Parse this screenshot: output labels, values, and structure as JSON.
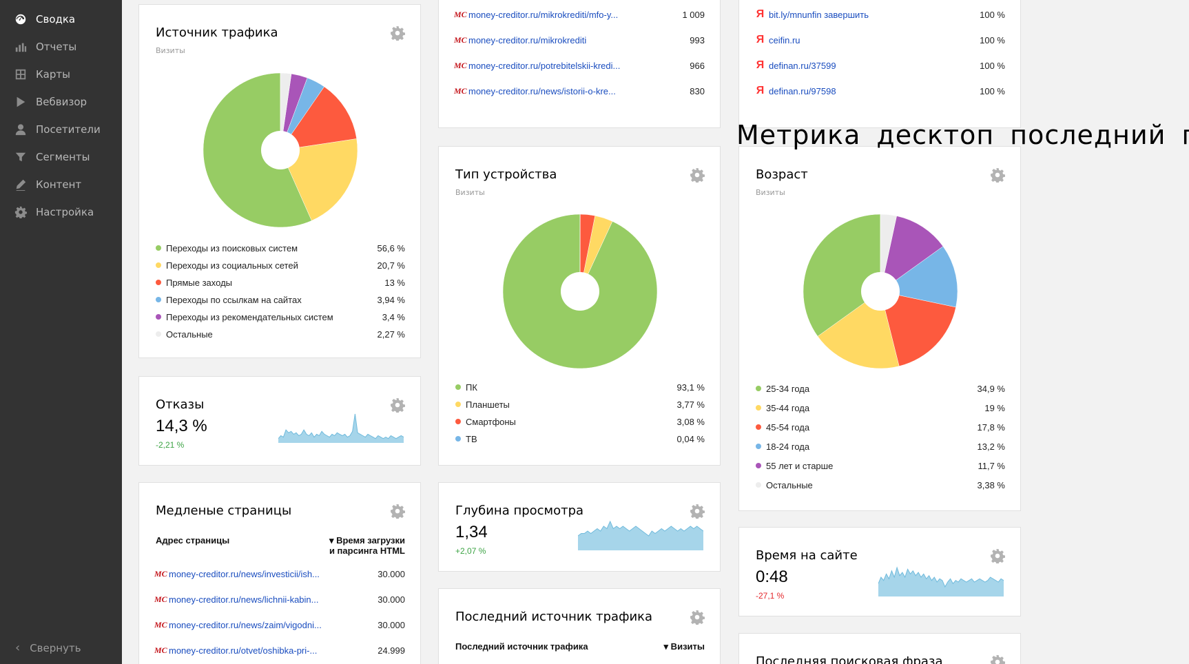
{
  "sidebar": {
    "items": [
      {
        "label": "Сводка",
        "icon": "dashboard-icon",
        "active": true
      },
      {
        "label": "Отчеты",
        "icon": "bar-chart-icon",
        "active": false
      },
      {
        "label": "Карты",
        "icon": "map-icon",
        "active": false
      },
      {
        "label": "Вебвизор",
        "icon": "play-icon",
        "active": false
      },
      {
        "label": "Посетители",
        "icon": "user-icon",
        "active": false
      },
      {
        "label": "Сегменты",
        "icon": "filter-icon",
        "active": false
      },
      {
        "label": "Контент",
        "icon": "pencil-icon",
        "active": false
      },
      {
        "label": "Настройка",
        "icon": "gear-icon",
        "active": false
      }
    ],
    "collapse_label": "Свернуть"
  },
  "overlay_caption": "Метрика десктоп последний год",
  "widgets": {
    "traffic_source": {
      "title": "Источник трафика",
      "subtitle": "Визиты",
      "legend": [
        {
          "label": "Переходы из поисковых систем",
          "value": "56,6 %",
          "color": "#97cc64"
        },
        {
          "label": "Переходы из социальных сетей",
          "value": "20,7 %",
          "color": "#ffd963"
        },
        {
          "label": "Прямые заходы",
          "value": "13 %",
          "color": "#fd5a3e"
        },
        {
          "label": "Переходы по ссылкам на сайтах",
          "value": "3,94 %",
          "color": "#77b6e7"
        },
        {
          "label": "Переходы из рекомендательных систем",
          "value": "3,4 %",
          "color": "#a955b8"
        },
        {
          "label": "Остальные",
          "value": "2,27 %",
          "color": "#ededed"
        }
      ]
    },
    "bounces": {
      "title": "Отказы",
      "value": "14,3 %",
      "delta": "-2,21 %",
      "sparkline": [
        3,
        5,
        4,
        9,
        7,
        8,
        6,
        7,
        5,
        6,
        9,
        6,
        5,
        7,
        4,
        6,
        5,
        8,
        6,
        5,
        4,
        6,
        5,
        7,
        6,
        5,
        6,
        4,
        5,
        8,
        20,
        7,
        6,
        5,
        4,
        6,
        5,
        4,
        3,
        5,
        4,
        3,
        4,
        3,
        5,
        4,
        3,
        4,
        5,
        4
      ]
    },
    "slow_pages": {
      "title": "Медленые страницы",
      "col_address": "Адрес страницы",
      "col_time_line1": "▾ Время загрузки",
      "col_time_line2": "и парсинга HTML",
      "rows": [
        {
          "url": "money-creditor.ru/news/investicii/ish...",
          "value": "30.000"
        },
        {
          "url": "money-creditor.ru/news/lichnii-kabin...",
          "value": "30.000"
        },
        {
          "url": "money-creditor.ru/news/zaim/vigodni...",
          "value": "30.000"
        },
        {
          "url": "money-creditor.ru/otvet/oshibka-pri-...",
          "value": "24.999"
        }
      ]
    },
    "pages_top": {
      "rows": [
        {
          "url": "money-creditor.ru/mikrokrediti/mfo-y...",
          "value": "1 009"
        },
        {
          "url": "money-creditor.ru/mikrokrediti",
          "value": "993"
        },
        {
          "url": "money-creditor.ru/potrebitelskii-kredi...",
          "value": "966"
        },
        {
          "url": "money-creditor.ru/news/istorii-o-kre...",
          "value": "830"
        }
      ]
    },
    "device_type": {
      "title": "Тип устройства",
      "subtitle": "Визиты",
      "legend": [
        {
          "label": "ПК",
          "value": "93,1 %",
          "color": "#97cc64"
        },
        {
          "label": "Планшеты",
          "value": "3,77 %",
          "color": "#ffd963"
        },
        {
          "label": "Смартфоны",
          "value": "3,08 %",
          "color": "#fd5a3e"
        },
        {
          "label": "ТВ",
          "value": "0,04 %",
          "color": "#77b6e7"
        }
      ]
    },
    "depth": {
      "title": "Глубина просмотра",
      "value": "1,34",
      "delta": "+2,07 %",
      "sparkline": [
        6,
        7,
        7,
        8,
        7,
        8,
        9,
        8,
        10,
        9,
        12,
        9,
        10,
        9,
        10,
        9,
        8,
        9,
        10,
        9,
        8,
        7,
        6,
        8,
        7,
        8,
        9,
        8,
        9,
        10,
        9,
        8,
        9,
        8,
        9,
        10,
        9,
        10,
        9,
        8
      ]
    },
    "last_source": {
      "title": "Последний источник трафика",
      "col_source": "Последний источник трафика",
      "col_visits": "▾ Визиты"
    },
    "referrals": {
      "rows": [
        {
          "url": "bit.ly/mnunfin завершить",
          "value": "100 %"
        },
        {
          "url": "ceifin.ru",
          "value": "100 %"
        },
        {
          "url": "definan.ru/37599",
          "value": "100 %"
        },
        {
          "url": "definan.ru/97598",
          "value": "100 %"
        }
      ]
    },
    "age": {
      "title": "Возраст",
      "subtitle": "Визиты",
      "legend": [
        {
          "label": "25-34 года",
          "value": "34,9 %",
          "color": "#97cc64"
        },
        {
          "label": "35-44 года",
          "value": "19 %",
          "color": "#ffd963"
        },
        {
          "label": "45-54 года",
          "value": "17,8 %",
          "color": "#fd5a3e"
        },
        {
          "label": "18-24 года",
          "value": "13,2 %",
          "color": "#77b6e7"
        },
        {
          "label": "55 лет и старше",
          "value": "11,7 %",
          "color": "#a955b8"
        },
        {
          "label": "Остальные",
          "value": "3,38 %",
          "color": "#ededed"
        }
      ]
    },
    "time_on_site": {
      "title": "Время на сайте",
      "value": "0:48",
      "delta": "-27,1 %",
      "sparkline": [
        8,
        12,
        10,
        14,
        11,
        16,
        12,
        18,
        13,
        15,
        12,
        17,
        14,
        16,
        13,
        15,
        12,
        14,
        11,
        13,
        10,
        12,
        9,
        11,
        10,
        6,
        9,
        11,
        8,
        10,
        9,
        11,
        10,
        9,
        10,
        11,
        9,
        10,
        11,
        10,
        9,
        10,
        12,
        11,
        10,
        9,
        11,
        10
      ]
    },
    "last_search_phrase": {
      "title": "Последняя поисковая фраза"
    }
  },
  "chart_data": [
    {
      "type": "pie",
      "title": "Источник трафика",
      "subtitle": "Визиты",
      "categories": [
        "Переходы из поисковых систем",
        "Переходы из социальных сетей",
        "Прямые заходы",
        "Переходы по ссылкам на сайтах",
        "Переходы из рекомендательных систем",
        "Остальные"
      ],
      "values": [
        56.6,
        20.7,
        13,
        3.94,
        3.4,
        2.27
      ],
      "colors": [
        "#97cc64",
        "#ffd963",
        "#fd5a3e",
        "#77b6e7",
        "#a955b8",
        "#ededed"
      ]
    },
    {
      "type": "pie",
      "title": "Тип устройства",
      "subtitle": "Визиты",
      "categories": [
        "ПК",
        "Планшеты",
        "Смартфоны",
        "ТВ"
      ],
      "values": [
        93.1,
        3.77,
        3.08,
        0.04
      ],
      "colors": [
        "#97cc64",
        "#ffd963",
        "#fd5a3e",
        "#77b6e7"
      ]
    },
    {
      "type": "pie",
      "title": "Возраст",
      "subtitle": "Визиты",
      "categories": [
        "25-34 года",
        "35-44 года",
        "45-54 года",
        "18-24 года",
        "55 лет и старше",
        "Остальные"
      ],
      "values": [
        34.9,
        19,
        17.8,
        13.2,
        11.7,
        3.38
      ],
      "colors": [
        "#97cc64",
        "#ffd963",
        "#fd5a3e",
        "#77b6e7",
        "#a955b8",
        "#ededed"
      ]
    }
  ],
  "colors": {
    "sidebar_bg": "#333333",
    "link": "#1a4dbf",
    "sparkline_fill": "#a6d5ea",
    "sparkline_stroke": "#6fbadc"
  }
}
